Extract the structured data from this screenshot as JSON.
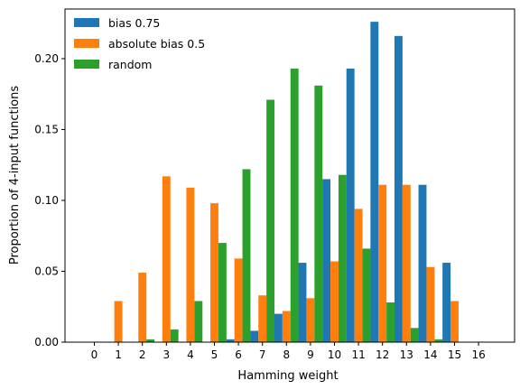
{
  "chart_data": {
    "type": "bar",
    "title": "",
    "xlabel": "Hamming weight",
    "ylabel": "Proportion of 4-input functions",
    "categories": [
      "0",
      "1",
      "2",
      "3",
      "4",
      "5",
      "6",
      "7",
      "8",
      "9",
      "10",
      "11",
      "12",
      "13",
      "14",
      "15",
      "16"
    ],
    "ylim": [
      0,
      0.235
    ],
    "yticks": [
      "0.00",
      "0.05",
      "0.10",
      "0.15",
      "0.20"
    ],
    "ytick_values": [
      0,
      0.05,
      0.1,
      0.15,
      0.2
    ],
    "grid": false,
    "legend_position": "upper-left",
    "series": [
      {
        "name": "bias 0.75",
        "color": "#1f77b4",
        "values": [
          0,
          0,
          0,
          0,
          0,
          0,
          0.002,
          0.008,
          0.02,
          0.056,
          0.115,
          0.193,
          0.226,
          0.216,
          0.111,
          0.056,
          0.0
        ]
      },
      {
        "name": "absolute bias 0.5",
        "color": "#ff7f0e",
        "values": [
          0,
          0.029,
          0.049,
          0.117,
          0.109,
          0.098,
          0.059,
          0.033,
          0.022,
          0.031,
          0.057,
          0.094,
          0.111,
          0.111,
          0.053,
          0.029,
          0
        ]
      },
      {
        "name": "random",
        "color": "#2ca02c",
        "values": [
          0,
          0.0003,
          0.002,
          0.009,
          0.029,
          0.07,
          0.122,
          0.171,
          0.193,
          0.181,
          0.118,
          0.066,
          0.028,
          0.01,
          0.002,
          0.0003,
          0
        ]
      }
    ]
  }
}
